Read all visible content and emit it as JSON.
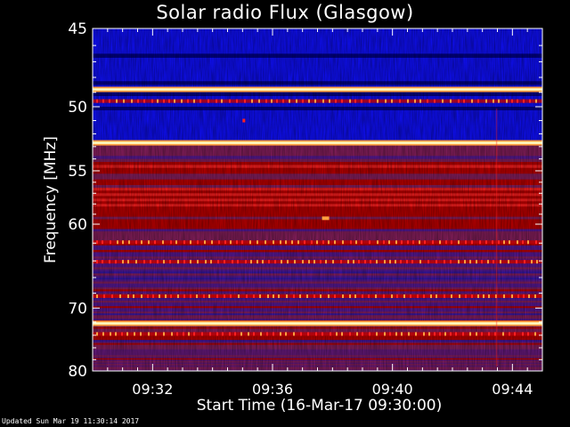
{
  "chart_data": {
    "type": "heatmap",
    "title": "Solar radio Flux (Glasgow)",
    "xlabel": "Start Time (16-Mar-17 09:30:00)",
    "ylabel": "Frequency [MHz]",
    "x_ticks": [
      "09:32",
      "09:36",
      "09:40",
      "09:44"
    ],
    "y_ticks": [
      "45",
      "50",
      "55",
      "60",
      "70",
      "80"
    ],
    "x_range_minutes": [
      0,
      15
    ],
    "y_range_mhz": [
      45,
      80
    ],
    "y_scale": "reciprocal",
    "colormap": [
      "#00008a",
      "#1010ff",
      "#8a2060",
      "#c00000",
      "#ff2020",
      "#ffa040",
      "#ffffc8"
    ],
    "features": {
      "bright_bands_mhz": [
        48.8,
        52.7,
        72.2
      ],
      "dashed_bands_mhz": [
        49.6,
        61.9,
        64.1,
        68.4,
        73.8
      ],
      "strong_red_region_mhz": [
        54.0,
        60.5
      ],
      "blue_region_mhz": [
        45.0,
        52.5
      ]
    }
  },
  "footer": {
    "updated": "Updated Sun Mar 19 11:30:14 2017"
  }
}
